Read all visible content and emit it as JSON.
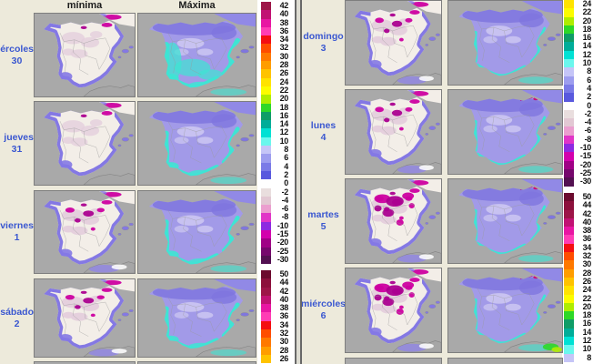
{
  "page": {
    "background": "#EDEADB",
    "scale_background": "#FFFFFF",
    "divider_color": "#686868",
    "day_label_color": "#3A57D0"
  },
  "left_panel": {
    "column_headers": [
      "mínima",
      "Máxima"
    ],
    "days": [
      {
        "day": "miércoles",
        "num": "30",
        "min_intensity": 1,
        "max_cyan": 3,
        "max_warm": 0
      },
      {
        "day": "jueves",
        "num": "31",
        "min_intensity": 1,
        "max_cyan": 2,
        "max_warm": 0
      },
      {
        "day": "viernes",
        "num": "1",
        "min_intensity": 2,
        "max_cyan": 2,
        "max_warm": 0
      },
      {
        "day": "sábado",
        "num": "2",
        "min_intensity": 2,
        "max_cyan": 2,
        "max_warm": 0
      }
    ],
    "scale_upper": [
      42,
      40,
      38,
      36,
      34,
      32,
      30,
      28,
      26,
      24,
      22,
      20,
      18,
      16,
      14,
      12,
      10,
      8,
      6,
      4,
      2,
      0,
      -2,
      -4,
      -6,
      -8,
      -10,
      -15,
      -20,
      -25,
      -30
    ],
    "scale_lower_visible": [
      50,
      44,
      42,
      40,
      38,
      36,
      34,
      32,
      30,
      28,
      26
    ]
  },
  "right_panel": {
    "days": [
      {
        "day": "domingo",
        "num": "3",
        "min_intensity": 2,
        "max_cyan": 1,
        "max_warm": 0
      },
      {
        "day": "lunes",
        "num": "4",
        "min_intensity": 2,
        "max_cyan": 1,
        "max_warm": 1
      },
      {
        "day": "martes",
        "num": "5",
        "min_intensity": 3,
        "max_cyan": 1,
        "max_warm": 1
      },
      {
        "day": "miércoles",
        "num": "6",
        "min_intensity": 3,
        "max_cyan": 1,
        "max_warm": 2
      }
    ],
    "scale_upper": [
      24,
      22,
      20,
      18,
      16,
      14,
      12,
      10,
      8,
      6,
      4,
      2,
      0,
      -2,
      -4,
      -6,
      -8,
      -10,
      -15,
      -20,
      -25,
      -30
    ],
    "scale_lower_visible": [
      50,
      44,
      42,
      40,
      38,
      36,
      34,
      32,
      30,
      28,
      26,
      24,
      22,
      20,
      18,
      16,
      14,
      12,
      10,
      8
    ]
  },
  "palette": {
    "50": "#6B0A2E",
    "44": "#8C103C",
    "42": "#9D1548",
    "40": "#C11273",
    "38": "#E816A3",
    "36": "#FF3DB5",
    "34": "#F40E12",
    "32": "#FF4D00",
    "30": "#FF7900",
    "28": "#FF9D00",
    "26": "#FFC300",
    "24": "#FFE300",
    "22": "#FCFC00",
    "20": "#AFED00",
    "18": "#2ED828",
    "16": "#0F9D67",
    "14": "#00AD99",
    "12": "#00E1D4",
    "10": "#6BF7ED",
    "8": "#C5C5F7",
    "6": "#9D9DEF",
    "4": "#7A7AE7",
    "2": "#5959DE",
    "0": "#FFFFFF",
    "-2": "#E9DEDE",
    "-4": "#E2C8D3",
    "-6": "#EB9ECF",
    "-8": "#E135C7",
    "-10": "#8D2AE1",
    "-15": "#D300AD",
    "-20": "#A00086",
    "-25": "#76076D",
    "-30": "#531051"
  },
  "map_colors": {
    "sea": "#A9A9A9",
    "africa": "#A6A6A6",
    "coastline": "#838383",
    "border_lines": "#9A9A9A",
    "min_base": "#F3EEE8",
    "min_fringe": "#8478E4",
    "min_pink": "#E4CEDC",
    "magenta": "#CC00A0",
    "magenta_dark": "#AB0090",
    "max_base": "#A29AE8",
    "max_deep": "#7F76DE",
    "max_light": "#CFC9F2",
    "cyan": "#3FE4D3",
    "warm_streak": "#D1006A",
    "green": "#2ED828",
    "green_light": "#AFED00"
  }
}
